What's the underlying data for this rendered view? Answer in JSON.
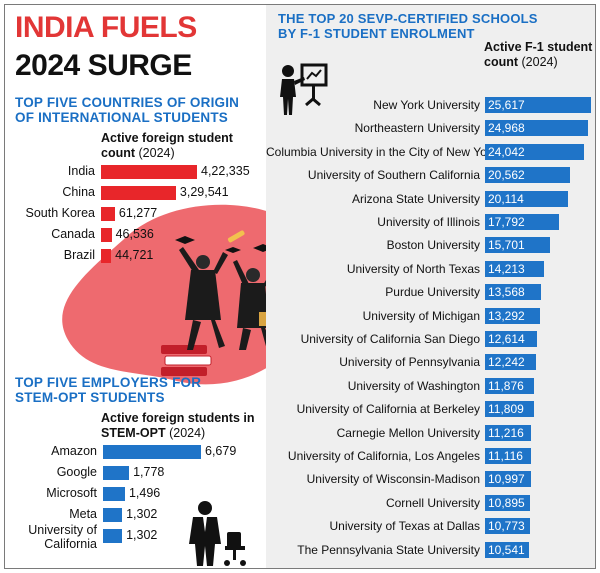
{
  "header": {
    "title_line1": "INDIA FUELS",
    "title_line2": "2024 SURGE"
  },
  "colors": {
    "title_red": "#e23636",
    "heading_blue": "#1a6fc4",
    "bar_red": "#e8262a",
    "bar_blue": "#1f74c8",
    "blob_pink": "#ee6a6f",
    "panel_gray": "#efefef"
  },
  "icons": [
    "presenter-at-board-icon",
    "graduates-illustration",
    "businessman-with-chair-icon"
  ],
  "chart_data": [
    {
      "type": "bar",
      "orientation": "horizontal",
      "title": "TOP FIVE COUNTRIES OF ORIGIN OF INTERNATIONAL STUDENTS",
      "title_lines": [
        "TOP FIVE COUNTRIES OF ORIGIN",
        "OF INTERNATIONAL STUDENTS"
      ],
      "subtitle_lines": [
        "Active foreign student",
        "count"
      ],
      "subtitle_year": "(2024)",
      "categories": [
        "India",
        "China",
        "South Korea",
        "Canada",
        "Brazil"
      ],
      "values": [
        422335,
        329541,
        61277,
        46536,
        44721
      ],
      "value_labels": [
        "4,22,335",
        "3,29,541",
        "61,277",
        "46,536",
        "44,721"
      ],
      "bar_color": "#e8262a",
      "xlim": [
        0,
        422335
      ]
    },
    {
      "type": "bar",
      "orientation": "horizontal",
      "title": "TOP FIVE EMPLOYERS FOR STEM-OPT STUDENTS",
      "title_lines": [
        "TOP FIVE EMPLOYERS FOR",
        "STEM-OPT STUDENTS"
      ],
      "subtitle_lines": [
        "Active foreign students in",
        "STEM-OPT"
      ],
      "subtitle_year": "(2024)",
      "categories": [
        [
          "Amazon"
        ],
        [
          "Google"
        ],
        [
          "Microsoft"
        ],
        [
          "Meta"
        ],
        [
          "University of",
          "California"
        ]
      ],
      "values": [
        6679,
        1778,
        1496,
        1302,
        1302
      ],
      "value_labels": [
        "6,679",
        "1,778",
        "1,496",
        "1,302",
        "1,302"
      ],
      "bar_color": "#1f74c8",
      "xlim": [
        0,
        6679
      ]
    },
    {
      "type": "bar",
      "orientation": "horizontal",
      "title": "THE TOP 20 SEVP-CERTIFIED SCHOOLS BY F-1 STUDENT ENROLMENT",
      "title_lines": [
        "THE TOP 20 SEVP-CERTIFIED SCHOOLS",
        "BY F-1 STUDENT ENROLMENT"
      ],
      "subtitle_lines": [
        "Active F-1 student",
        "count"
      ],
      "subtitle_year": "(2024)",
      "categories": [
        "New York University",
        "Northeastern University",
        "Columbia University in the City of New York",
        "University of Southern California",
        "Arizona State University",
        "University of Illinois",
        "Boston University",
        "University of North Texas",
        "Purdue University",
        "University of Michigan",
        "University of California San Diego",
        "University of Pennsylvania",
        "University of Washington",
        "University of California at Berkeley",
        "Carnegie Mellon University",
        "University of California, Los Angeles",
        "University of Wisconsin-Madison",
        "Cornell University",
        "University of Texas at Dallas",
        "The Pennsylvania State University"
      ],
      "values": [
        25617,
        24968,
        24042,
        20562,
        20114,
        17792,
        15701,
        14213,
        13568,
        13292,
        12614,
        12242,
        11876,
        11809,
        11216,
        11116,
        10997,
        10895,
        10773,
        10541
      ],
      "value_labels": [
        "25,617",
        "24,968",
        "24,042",
        "20,562",
        "20,114",
        "17,792",
        "15,701",
        "14,213",
        "13,568",
        "13,292",
        "12,614",
        "12,242",
        "11,876",
        "11,809",
        "11,216",
        "11,116",
        "10,997",
        "10,895",
        "10,773",
        "10,541"
      ],
      "bar_color": "#1f74c8",
      "xlim": [
        0,
        25617
      ]
    }
  ]
}
